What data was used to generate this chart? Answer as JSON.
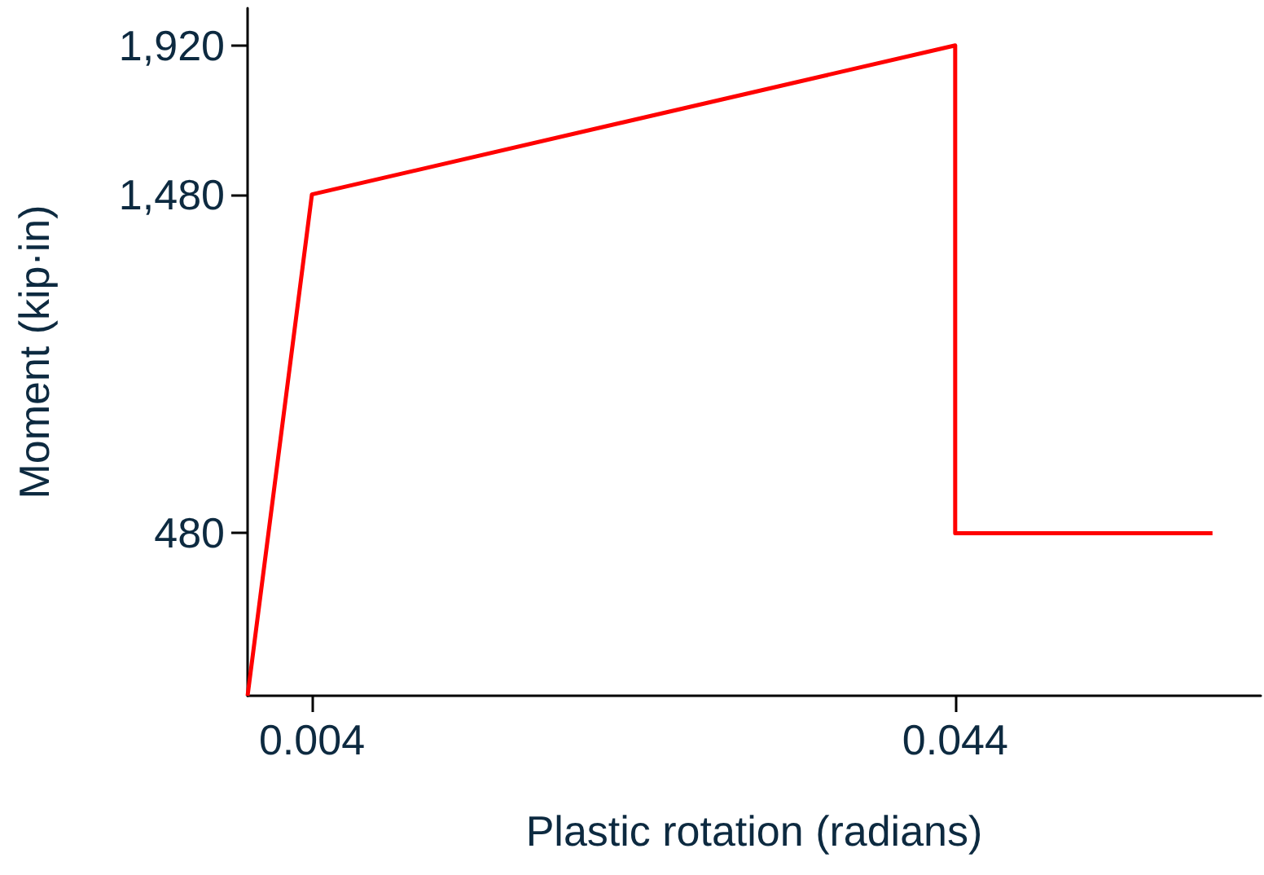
{
  "chart_data": {
    "type": "line",
    "xlabel": "Plastic rotation (radians)",
    "ylabel": "Moment (kip·in)",
    "x": [
      0,
      0.004,
      0.044,
      0.044,
      0.06
    ],
    "series": [
      {
        "color": "#ff0000",
        "values": [
          0,
          1480,
          1920,
          480,
          480
        ]
      }
    ],
    "xlim": [
      0,
      0.063
    ],
    "xticks": [
      0.004,
      0.044
    ],
    "ylim": [
      0,
      2030
    ],
    "yticks": [
      {
        "value": 480,
        "label": "480"
      },
      {
        "value": 1480,
        "label": "1,480"
      },
      {
        "value": 1920,
        "label": "1,920"
      }
    ],
    "grid": false,
    "marker": "none",
    "line_style": "solid"
  }
}
